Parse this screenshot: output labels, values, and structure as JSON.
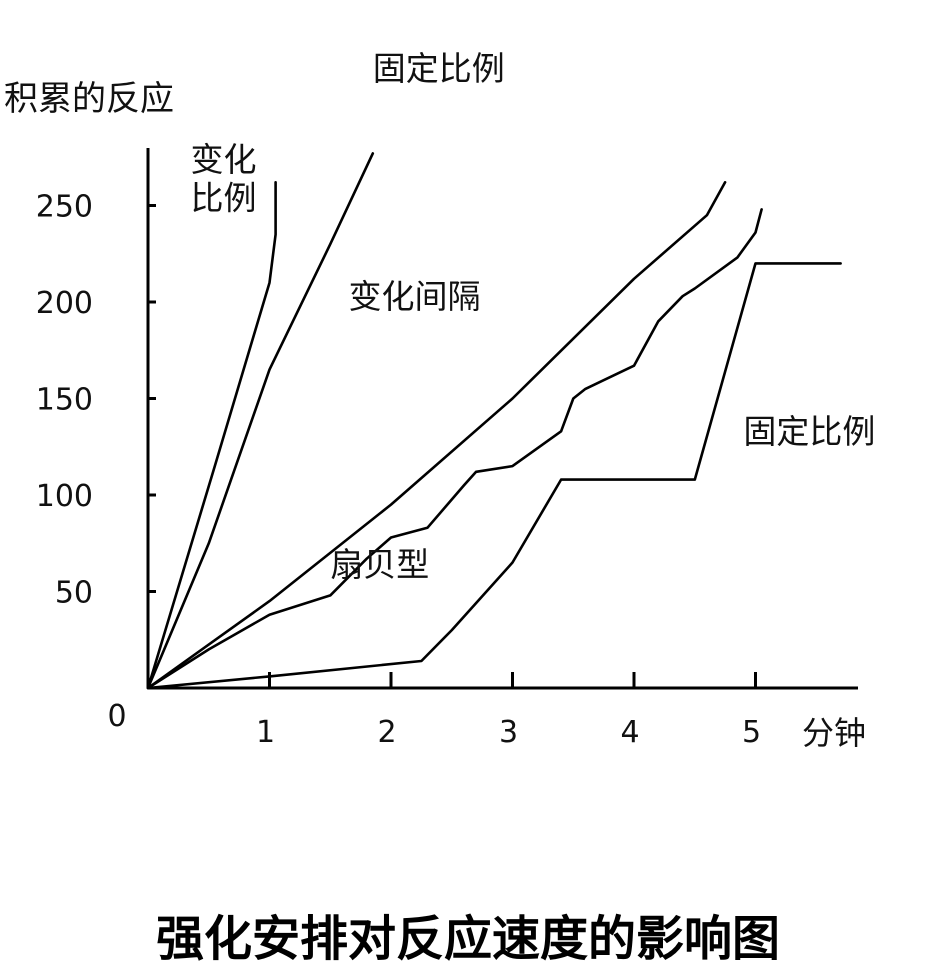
{
  "chart_data": {
    "type": "line",
    "title": "强化安排对反应速度的影响图",
    "ylabel": "积累的反应",
    "xlabel": "分钟",
    "xlim": [
      0,
      5.8
    ],
    "ylim": [
      0,
      290
    ],
    "x_ticks": [
      {
        "value": 0,
        "label": "0"
      },
      {
        "value": 1,
        "label": "1"
      },
      {
        "value": 2,
        "label": "2"
      },
      {
        "value": 3,
        "label": "3"
      },
      {
        "value": 4,
        "label": "4"
      },
      {
        "value": 5,
        "label": "5"
      }
    ],
    "y_ticks": [
      {
        "value": 50,
        "label": "50"
      },
      {
        "value": 100,
        "label": "100"
      },
      {
        "value": 150,
        "label": "150"
      },
      {
        "value": 200,
        "label": "200"
      },
      {
        "value": 250,
        "label": "250"
      }
    ],
    "series": [
      {
        "name": "变化比例",
        "points": [
          [
            0,
            0
          ],
          [
            0.55,
            115
          ],
          [
            1.0,
            210
          ],
          [
            1.05,
            235
          ],
          [
            1.05,
            262
          ]
        ]
      },
      {
        "name": "固定比例",
        "points": [
          [
            0,
            0
          ],
          [
            0.5,
            75
          ],
          [
            1.0,
            165
          ],
          [
            1.5,
            230
          ],
          [
            1.85,
            277
          ]
        ]
      },
      {
        "name": "变化间隔",
        "points": [
          [
            0,
            0
          ],
          [
            1.0,
            45
          ],
          [
            2.0,
            95
          ],
          [
            3.0,
            150
          ],
          [
            4.0,
            212
          ],
          [
            4.6,
            245
          ],
          [
            4.75,
            262
          ]
        ]
      },
      {
        "name": "扇贝型",
        "points": [
          [
            0,
            0
          ],
          [
            0.5,
            20
          ],
          [
            1.0,
            38
          ],
          [
            1.5,
            48
          ],
          [
            1.8,
            67
          ],
          [
            2.0,
            78
          ],
          [
            2.3,
            83
          ],
          [
            2.6,
            105
          ],
          [
            2.7,
            112
          ],
          [
            3.0,
            115
          ],
          [
            3.4,
            133
          ],
          [
            3.5,
            150
          ],
          [
            3.6,
            155
          ],
          [
            4.0,
            167
          ],
          [
            4.2,
            190
          ],
          [
            4.4,
            203
          ],
          [
            4.5,
            207
          ],
          [
            4.85,
            223
          ],
          [
            5.0,
            236
          ],
          [
            5.05,
            248
          ]
        ]
      },
      {
        "name": "固定比例",
        "points": [
          [
            0,
            0
          ],
          [
            1.0,
            6
          ],
          [
            2.25,
            14
          ],
          [
            2.5,
            30
          ],
          [
            3.0,
            65
          ],
          [
            3.4,
            108
          ],
          [
            4.5,
            108
          ],
          [
            5.0,
            220
          ],
          [
            5.7,
            220
          ]
        ]
      }
    ],
    "annotations": [
      {
        "text": "变化",
        "x": 0.35,
        "y": 268
      },
      {
        "text": "比例",
        "x": 0.35,
        "y": 248
      },
      {
        "text": "固定比例",
        "x": 1.85,
        "y": 315
      },
      {
        "text": "变化间隔",
        "x": 1.65,
        "y": 197
      },
      {
        "text": "固定比例",
        "x": 4.9,
        "y": 127
      },
      {
        "text": "扇贝型",
        "x": 1.5,
        "y": 58
      }
    ]
  }
}
